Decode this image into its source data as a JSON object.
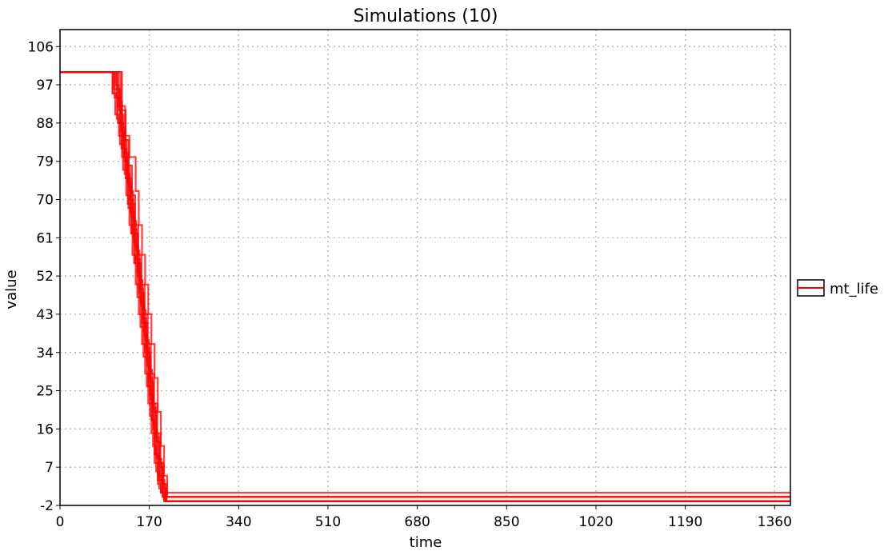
{
  "chart_data": {
    "type": "line",
    "title": "Simulations (10)",
    "xlabel": "time",
    "ylabel": "value",
    "xlim": [
      0,
      1390
    ],
    "ylim": [
      -2,
      110
    ],
    "x_ticks": [
      0,
      170,
      340,
      510,
      680,
      850,
      1020,
      1190,
      1360
    ],
    "y_ticks": [
      -2,
      7,
      16,
      25,
      34,
      43,
      52,
      61,
      70,
      79,
      88,
      97,
      106
    ],
    "x_tick_labels": [
      "0",
      "170",
      "340",
      "510",
      "680",
      "850",
      "1020",
      "1190",
      "1360"
    ],
    "y_tick_labels": [
      "-2",
      "7",
      "16",
      "25",
      "34",
      "43",
      "52",
      "61",
      "70",
      "79",
      "88",
      "97",
      "106"
    ],
    "grid": true,
    "legend": {
      "position": "right",
      "entries": [
        "mt_life"
      ]
    },
    "series_color": "#ff0000",
    "series": [
      {
        "name": "mt_life",
        "x": [
          0,
          90,
          100,
          105,
          112,
          118,
          125,
          130,
          137,
          143,
          150,
          156,
          162,
          168,
          174,
          180,
          186,
          192,
          198,
          1390
        ],
        "y": [
          100,
          100,
          95,
          90,
          85,
          80,
          75,
          68,
          62,
          55,
          48,
          41,
          34,
          26,
          18,
          10,
          4,
          1,
          -1,
          -1
        ]
      },
      {
        "name": "mt_life",
        "x": [
          0,
          95,
          103,
          110,
          116,
          122,
          128,
          134,
          140,
          147,
          153,
          159,
          165,
          171,
          177,
          183,
          189,
          195,
          201,
          1390
        ],
        "y": [
          100,
          100,
          96,
          92,
          86,
          80,
          74,
          67,
          60,
          53,
          46,
          39,
          32,
          24,
          17,
          10,
          5,
          1,
          -1,
          -1
        ]
      },
      {
        "name": "mt_life",
        "x": [
          0,
          100,
          108,
          114,
          120,
          127,
          133,
          139,
          146,
          152,
          158,
          164,
          170,
          176,
          182,
          188,
          194,
          200,
          1390
        ],
        "y": [
          100,
          100,
          94,
          88,
          82,
          76,
          70,
          63,
          56,
          49,
          42,
          35,
          28,
          21,
          14,
          8,
          3,
          -1,
          -1
        ]
      },
      {
        "name": "mt_life",
        "x": [
          0,
          98,
          106,
          112,
          118,
          124,
          130,
          136,
          142,
          148,
          154,
          160,
          166,
          172,
          178,
          184,
          190,
          196,
          1390
        ],
        "y": [
          100,
          100,
          97,
          91,
          85,
          79,
          73,
          66,
          59,
          52,
          45,
          38,
          31,
          23,
          16,
          9,
          4,
          0,
          0
        ]
      },
      {
        "name": "mt_life",
        "x": [
          0,
          105,
          112,
          118,
          124,
          130,
          136,
          142,
          148,
          154,
          160,
          166,
          172,
          178,
          184,
          190,
          196,
          202,
          1390
        ],
        "y": [
          100,
          100,
          93,
          87,
          81,
          75,
          69,
          62,
          55,
          48,
          41,
          34,
          27,
          20,
          13,
          7,
          2,
          -1,
          -1
        ]
      },
      {
        "name": "mt_life",
        "x": [
          0,
          108,
          116,
          124,
          132,
          138,
          144,
          150,
          156,
          162,
          168,
          174,
          180,
          186,
          192,
          198,
          204,
          1390
        ],
        "y": [
          100,
          100,
          92,
          85,
          80,
          80,
          72,
          64,
          57,
          50,
          43,
          36,
          28,
          20,
          12,
          5,
          0,
          0
        ]
      },
      {
        "name": "mt_life",
        "x": [
          0,
          92,
          100,
          108,
          114,
          120,
          126,
          132,
          138,
          144,
          150,
          156,
          162,
          168,
          174,
          180,
          186,
          192,
          1390
        ],
        "y": [
          100,
          100,
          95,
          89,
          83,
          77,
          71,
          64,
          57,
          50,
          43,
          36,
          29,
          22,
          15,
          8,
          3,
          1,
          1
        ]
      },
      {
        "name": "mt_life",
        "x": [
          0,
          102,
          109,
          115,
          121,
          127,
          133,
          139,
          145,
          151,
          157,
          163,
          169,
          175,
          181,
          187,
          193,
          199,
          1390
        ],
        "y": [
          100,
          100,
          96,
          90,
          84,
          78,
          72,
          65,
          58,
          51,
          44,
          37,
          30,
          22,
          15,
          9,
          4,
          -1,
          -1
        ]
      },
      {
        "name": "mt_life",
        "x": [
          0,
          96,
          104,
          110,
          117,
          123,
          129,
          135,
          141,
          147,
          153,
          159,
          165,
          171,
          177,
          183,
          189,
          195,
          1390
        ],
        "y": [
          100,
          100,
          94,
          88,
          82,
          76,
          69,
          62,
          55,
          47,
          40,
          33,
          26,
          19,
          12,
          6,
          2,
          0,
          0
        ]
      },
      {
        "name": "mt_life",
        "x": [
          0,
          110,
          118,
          125,
          131,
          137,
          143,
          149,
          155,
          161,
          167,
          173,
          179,
          185,
          191,
          197,
          203,
          1390
        ],
        "y": [
          100,
          100,
          91,
          84,
          78,
          71,
          64,
          57,
          50,
          43,
          36,
          29,
          22,
          15,
          8,
          3,
          -1,
          -1
        ]
      }
    ]
  }
}
